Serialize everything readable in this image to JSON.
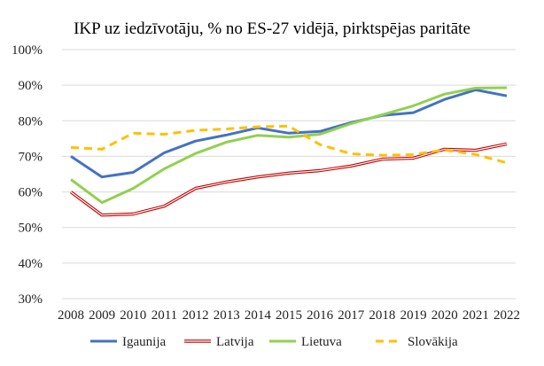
{
  "chart_data": {
    "type": "line",
    "title": "IKP uz iedzīvotāju, % no ES-27 vidējā, pirktspējas paritāte",
    "xlabel": "",
    "ylabel": "",
    "x": [
      "2008",
      "2009",
      "2010",
      "2011",
      "2012",
      "2013",
      "2014",
      "2015",
      "2016",
      "2017",
      "2018",
      "2019",
      "2020",
      "2021",
      "2022"
    ],
    "ylim": [
      30,
      100
    ],
    "yticks": [
      "30%",
      "40%",
      "50%",
      "60%",
      "70%",
      "80%",
      "90%",
      "100%"
    ],
    "grid": true,
    "legend_position": "bottom",
    "series": [
      {
        "name": "Igaunija",
        "color": "#4472C4",
        "style": "solid",
        "values": [
          70,
          64.2,
          65.5,
          71,
          74.3,
          76,
          78,
          76.5,
          77,
          79.5,
          81.5,
          82.3,
          86,
          88.7,
          87
        ]
      },
      {
        "name": "Latvija",
        "color": "#C00000",
        "style": "double",
        "values": [
          60,
          53.5,
          53.8,
          56,
          61,
          62.8,
          64.2,
          65.3,
          66,
          67.3,
          69.2,
          69.5,
          72,
          71.7,
          73.5
        ]
      },
      {
        "name": "Lietuva",
        "color": "#92D050",
        "style": "solid",
        "values": [
          63.5,
          57,
          61,
          66.5,
          70.8,
          74,
          75.9,
          75.4,
          76.2,
          79.2,
          81.7,
          84.2,
          87.5,
          89.2,
          89.3
        ]
      },
      {
        "name": "Slovākija",
        "color": "#FFC000",
        "style": "dashed",
        "values": [
          72.5,
          72,
          76.5,
          76.2,
          77.3,
          77.7,
          78.3,
          78.5,
          73.3,
          70.7,
          70.3,
          70.5,
          71.8,
          70.5,
          68.2
        ]
      }
    ]
  }
}
